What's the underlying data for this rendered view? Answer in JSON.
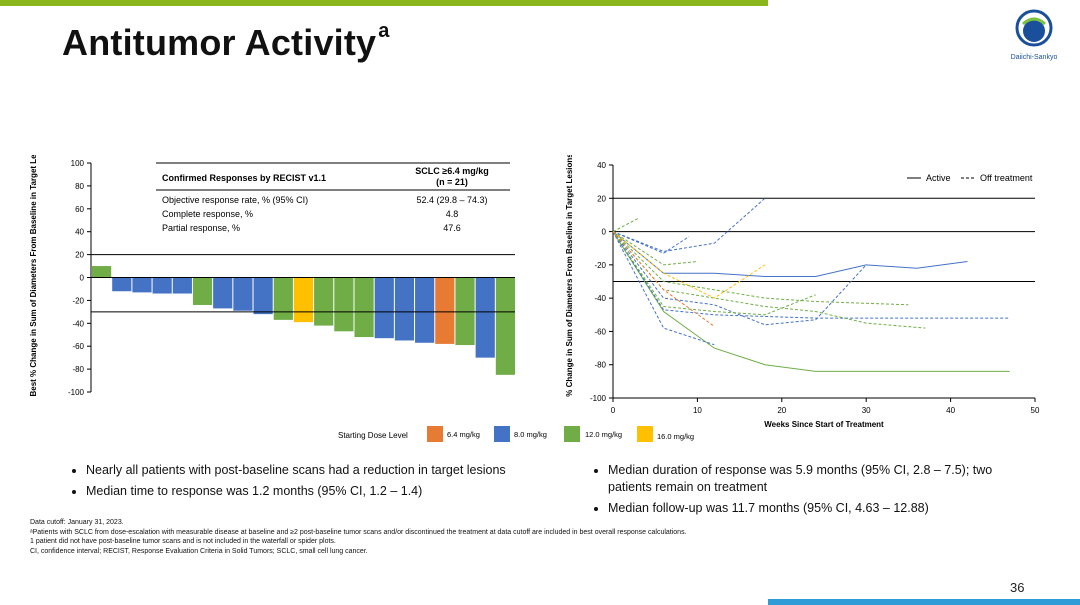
{
  "theme": {
    "green_bar": "#8ab61c",
    "blue_bar": "#2f9bd7",
    "orange": "#e87b33",
    "blue": "#4472c4",
    "green": "#70ad47",
    "yellow": "#ffc000"
  },
  "title": {
    "main": "Antitumor Activity",
    "superscript": "a"
  },
  "logo": {
    "name": "daiichi-sankyo-logo",
    "text": "Daiichi-Sankyo"
  },
  "response_table": {
    "header_left": "Confirmed Responses by RECIST v1.1",
    "header_right_line1": "SCLC ≥6.4 mg/kg",
    "header_right_line2": "(n = 21)",
    "rows": [
      {
        "label": "Objective response rate, % (95% CI)",
        "value": "52.4 (29.8 – 74.3)"
      },
      {
        "label": "Complete response, %",
        "value": "4.8"
      },
      {
        "label": "Partial response, %",
        "value": "47.6"
      }
    ]
  },
  "legend": {
    "title": "Starting Dose Level",
    "items": [
      {
        "label": "6.4 mg/kg",
        "color": "#e87b33"
      },
      {
        "label": "8.0 mg/kg",
        "color": "#4472c4"
      },
      {
        "label": "12.0 mg/kg",
        "color": "#70ad47"
      },
      {
        "label": "16.0 mg/kg",
        "color": "#ffc000"
      }
    ]
  },
  "chart_data": [
    {
      "type": "bar",
      "subtype": "waterfall",
      "ylabel": "Best % Change in Sum of Diameters From Baseline in Target Lesions",
      "ylim": [
        -100,
        100
      ],
      "yticks": [
        100,
        80,
        60,
        40,
        20,
        0,
        -20,
        -40,
        -60,
        -80,
        -100
      ],
      "reference_lines": [
        20,
        -30
      ],
      "series": [
        {
          "name": "Patients",
          "values": [
            10,
            -12,
            -13,
            -14,
            -14,
            -24,
            -27,
            -29,
            -32,
            -37,
            -39,
            -42,
            -47,
            -52,
            -53,
            -55,
            -57,
            -58,
            -59,
            -70,
            -85
          ],
          "dose": [
            "12.0 mg/kg",
            "8.0 mg/kg",
            "8.0 mg/kg",
            "8.0 mg/kg",
            "8.0 mg/kg",
            "12.0 mg/kg",
            "8.0 mg/kg",
            "8.0 mg/kg",
            "8.0 mg/kg",
            "12.0 mg/kg",
            "16.0 mg/kg",
            "12.0 mg/kg",
            "12.0 mg/kg",
            "12.0 mg/kg",
            "8.0 mg/kg",
            "8.0 mg/kg",
            "8.0 mg/kg",
            "6.4 mg/kg",
            "12.0 mg/kg",
            "8.0 mg/kg",
            "12.0 mg/kg"
          ]
        }
      ]
    },
    {
      "type": "line",
      "subtype": "spider",
      "xlabel": "Weeks Since Start of Treatment",
      "ylabel": "% Change in Sum of Diameters From Baseline in Target Lesions",
      "xlim": [
        0,
        50
      ],
      "ylim": [
        -100,
        40
      ],
      "xticks": [
        0,
        10,
        20,
        30,
        40,
        50
      ],
      "yticks": [
        40,
        20,
        0,
        -20,
        -40,
        -60,
        -80,
        -100
      ],
      "reference_lines": [
        20,
        0,
        -30
      ],
      "legend_entries": [
        "Active",
        "Off treatment"
      ],
      "series": [
        {
          "dose": "12.0 mg/kg",
          "status": "Active",
          "x": [
            0,
            6,
            12,
            18,
            24,
            36,
            47
          ],
          "y": [
            0,
            -48,
            -70,
            -80,
            -84,
            -84,
            -84
          ]
        },
        {
          "dose": "8.0 mg/kg",
          "status": "Active",
          "x": [
            0,
            6,
            12,
            18,
            24,
            30,
            36,
            42
          ],
          "y": [
            0,
            -25,
            -25,
            -27,
            -27,
            -20,
            -22,
            -18
          ]
        },
        {
          "dose": "8.0 mg/kg",
          "status": "Off treatment",
          "x": [
            0,
            6,
            12,
            18
          ],
          "y": [
            0,
            -12,
            -7,
            20
          ]
        },
        {
          "dose": "8.0 mg/kg",
          "status": "Off treatment",
          "x": [
            0,
            6,
            9
          ],
          "y": [
            0,
            -13,
            -3
          ]
        },
        {
          "dose": "8.0 mg/kg",
          "status": "Off treatment",
          "x": [
            0,
            6,
            12,
            18,
            24,
            30
          ],
          "y": [
            0,
            -40,
            -44,
            -56,
            -53,
            -20
          ]
        },
        {
          "dose": "8.0 mg/kg",
          "status": "Off treatment",
          "x": [
            0,
            6,
            12,
            24,
            36,
            47
          ],
          "y": [
            0,
            -47,
            -50,
            -52,
            -52,
            -52
          ]
        },
        {
          "dose": "8.0 mg/kg",
          "status": "Off treatment",
          "x": [
            0,
            6,
            12
          ],
          "y": [
            0,
            -58,
            -68
          ]
        },
        {
          "dose": "12.0 mg/kg",
          "status": "Off treatment",
          "x": [
            0,
            3
          ],
          "y": [
            0,
            8
          ]
        },
        {
          "dose": "12.0 mg/kg",
          "status": "Off treatment",
          "x": [
            0,
            6,
            12,
            18,
            24,
            35
          ],
          "y": [
            0,
            -30,
            -35,
            -40,
            -42,
            -44
          ]
        },
        {
          "dose": "12.0 mg/kg",
          "status": "Off treatment",
          "x": [
            0,
            6,
            12,
            18,
            24,
            30,
            37
          ],
          "y": [
            0,
            -35,
            -40,
            -45,
            -48,
            -55,
            -58
          ]
        },
        {
          "dose": "12.0 mg/kg",
          "status": "Off treatment",
          "x": [
            0,
            6,
            12,
            18,
            24
          ],
          "y": [
            0,
            -45,
            -48,
            -50,
            -38
          ]
        },
        {
          "dose": "12.0 mg/kg",
          "status": "Off treatment",
          "x": [
            0,
            6,
            10
          ],
          "y": [
            0,
            -20,
            -18
          ]
        },
        {
          "dose": "16.0 mg/kg",
          "status": "Off treatment",
          "x": [
            0,
            6,
            12,
            18
          ],
          "y": [
            0,
            -25,
            -40,
            -20
          ]
        },
        {
          "dose": "6.4 mg/kg",
          "status": "Off treatment",
          "x": [
            0,
            6,
            12
          ],
          "y": [
            0,
            -35,
            -57
          ]
        }
      ]
    }
  ],
  "bullets_left": [
    "Nearly all patients with post-baseline scans had a reduction in target lesions",
    "Median time to response was 1.2 months (95% CI, 1.2 – 1.4)"
  ],
  "bullets_right": [
    "Median duration of response was 5.9 months (95% CI, 2.8 – 7.5); two patients remain on treatment",
    "Median follow-up was 11.7 months (95% CI, 4.63 – 12.88)"
  ],
  "footnotes": [
    "Data cutoff: January 31, 2023.",
    "ᵃPatients with SCLC from dose-escalation with measurable disease at baseline and ≥2 post-baseline tumor scans and/or discontinued the treatment at data cutoff are included in best overall response calculations.",
    "1 patient did not have post-baseline tumor scans and is not included in the waterfall or spider plots.",
    "CI, confidence interval; RECIST, Response Evaluation Criteria in Solid Tumors; SCLC, small cell lung cancer."
  ],
  "page_number": "36"
}
